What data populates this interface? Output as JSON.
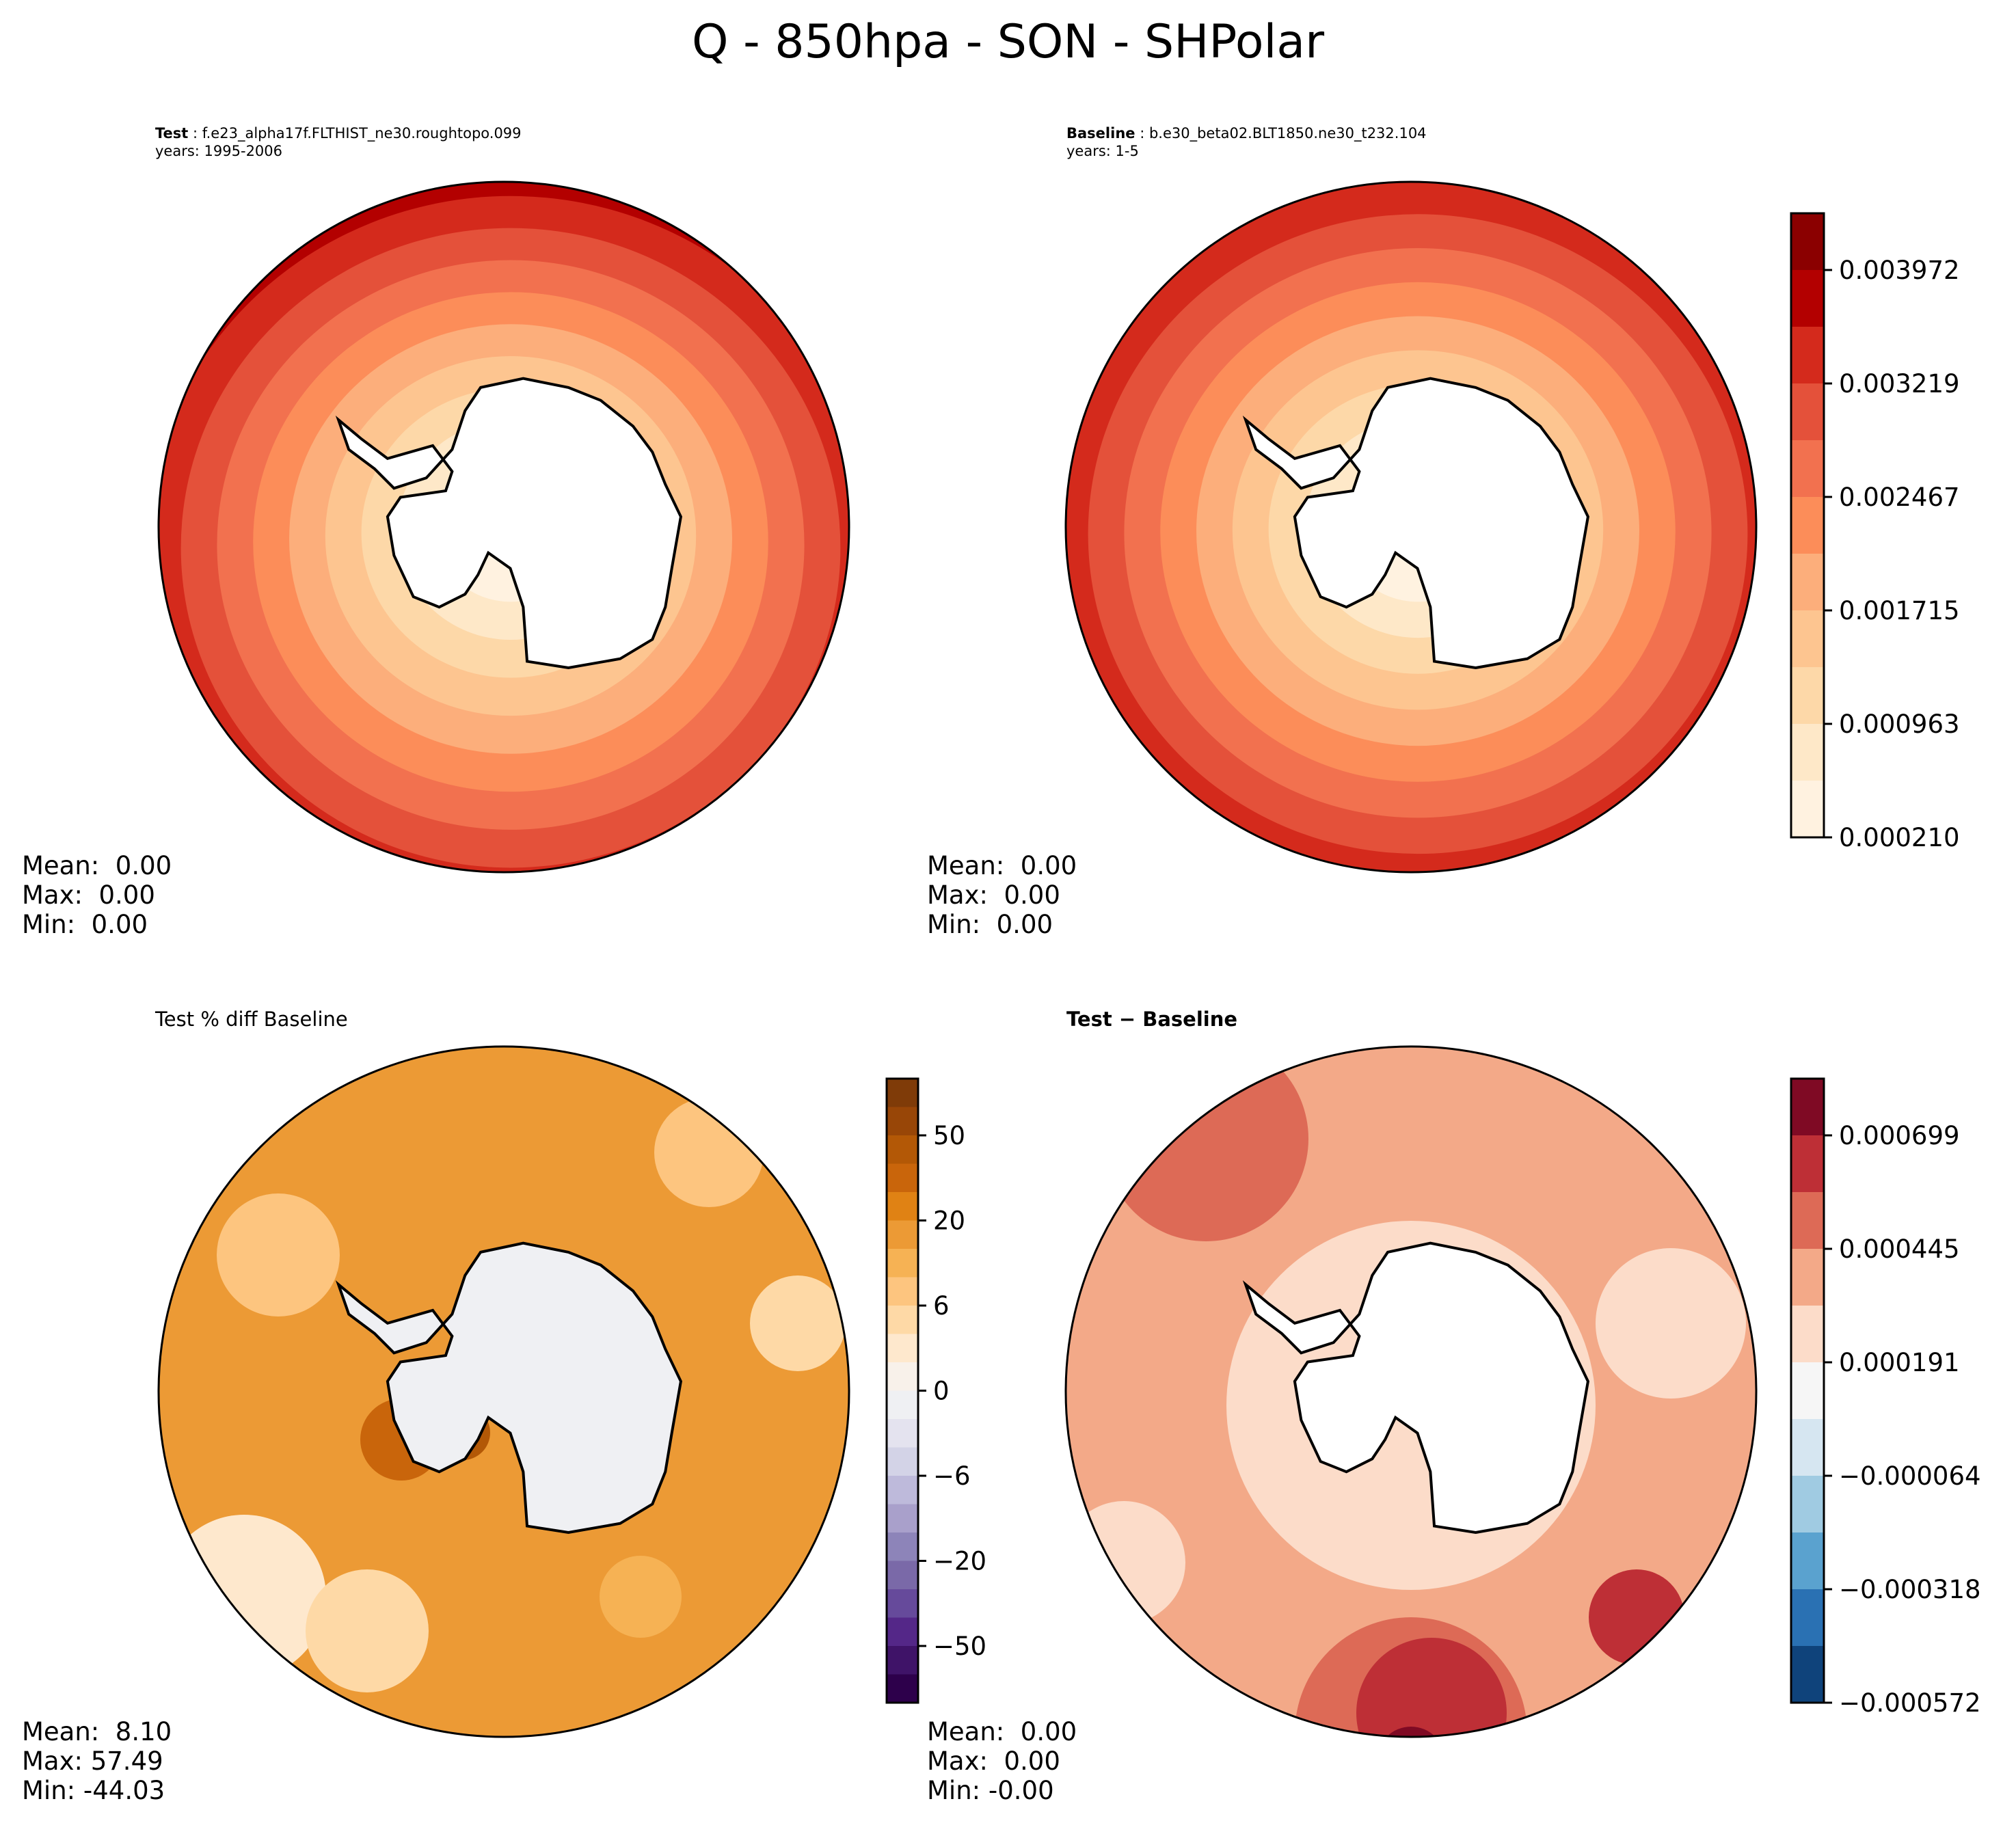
{
  "title": "Q - 850hpa - SON - SHPolar",
  "chart_data": [
    {
      "type": "heatmap",
      "panel": "test",
      "subtitle_label": "Test",
      "subtitle_case": "f.e23_alpha17f.FLTHIST_ne30.roughtopo.099",
      "subtitle_years": "years: 1995-2006",
      "projection": "south polar stereographic",
      "stats": {
        "mean": "Mean:  0.00",
        "max": "Max:  0.00",
        "min": "Min:  0.00"
      }
    },
    {
      "type": "heatmap",
      "panel": "baseline",
      "subtitle_label": "Baseline",
      "subtitle_case": "b.e30_beta02.BLT1850.ne30_t232.104",
      "subtitle_years": "years: 1-5",
      "projection": "south polar stereographic",
      "stats": {
        "mean": "Mean:  0.00",
        "max": "Max:  0.00",
        "min": "Min:  0.00"
      },
      "colorbar": {
        "colormap": "OrRd",
        "ticks": [
          "0.003972",
          "0.003219",
          "0.002467",
          "0.001715",
          "0.000963",
          "0.000210"
        ],
        "colors": [
          "#8b0000",
          "#b30000",
          "#d42a1c",
          "#e4513a",
          "#f2714f",
          "#fc8d59",
          "#fcae7b",
          "#fdc590",
          "#fdd8a8",
          "#fee8c8",
          "#fff2e0"
        ]
      }
    },
    {
      "type": "heatmap",
      "panel": "pct_diff",
      "title": "Test % diff Baseline",
      "projection": "south polar stereographic",
      "stats": {
        "mean": "Mean:  8.10",
        "max": "Max: 57.49",
        "min": "Min: -44.03"
      },
      "colorbar": {
        "colormap": "PuOr_r",
        "ticks": [
          "50",
          "20",
          "6",
          "0",
          "−6",
          "−20",
          "−50"
        ],
        "colors": [
          "#7f3b08",
          "#984607",
          "#b35806",
          "#c9650b",
          "#e08214",
          "#ec9a35",
          "#f6b254",
          "#fdc57f",
          "#fed9a6",
          "#fee8cd",
          "#f8f1ea",
          "#eff0f3",
          "#e4e3ef",
          "#d3d3e7",
          "#bebadb",
          "#a9a0cb",
          "#8d84b9",
          "#7a69a8",
          "#664a9b",
          "#542788",
          "#3f1368",
          "#2d004b"
        ]
      }
    },
    {
      "type": "heatmap",
      "panel": "diff",
      "title": "Test − Baseline",
      "projection": "south polar stereographic",
      "stats": {
        "mean": "Mean:  0.00",
        "max": "Max:  0.00",
        "min": "Min: -0.00"
      },
      "colorbar": {
        "colormap": "RdBu_r",
        "ticks": [
          "0.000699",
          "0.000445",
          "0.000191",
          "−0.000064",
          "−0.000318",
          "−0.000572"
        ],
        "colors": [
          "#7f0a24",
          "#be2f36",
          "#dd6a56",
          "#f3a988",
          "#fcdcc9",
          "#f6f6f6",
          "#d6e6f1",
          "#a0cbe2",
          "#5aa2cf",
          "#2a71b3",
          "#0f437b"
        ]
      }
    }
  ]
}
